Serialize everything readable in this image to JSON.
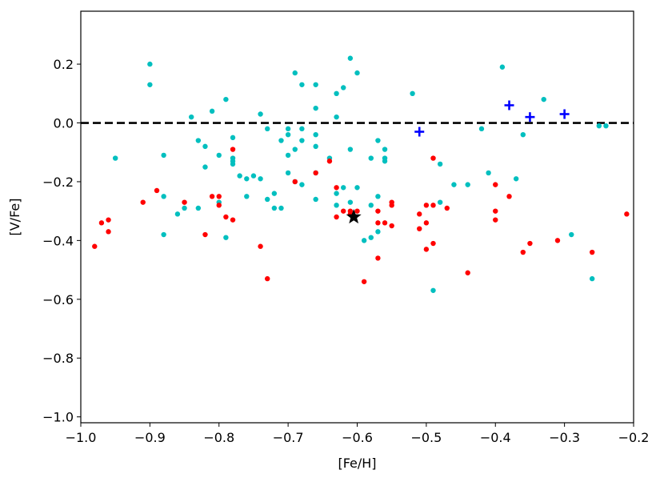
{
  "chart_data": {
    "type": "scatter",
    "title": "",
    "xlabel": "[Fe/H]",
    "ylabel": "[V/Fe]",
    "xlim": [
      -1.0,
      -0.2
    ],
    "ylim": [
      -1.02,
      0.38
    ],
    "xticks": [
      -1.0,
      -0.9,
      -0.8,
      -0.7,
      -0.6,
      -0.5,
      -0.4,
      -0.3,
      -0.2
    ],
    "xtick_labels": [
      "−1.0",
      "−0.9",
      "−0.8",
      "−0.7",
      "−0.6",
      "−0.5",
      "−0.4",
      "−0.3",
      "−0.2"
    ],
    "yticks": [
      -1.0,
      -0.8,
      -0.6,
      -0.4,
      -0.2,
      0.0,
      0.2
    ],
    "ytick_labels": [
      "−1.0",
      "−0.8",
      "−0.6",
      "−0.4",
      "−0.2",
      "0.0",
      "0.2"
    ],
    "grid": false,
    "legend": false,
    "reference_line": {
      "y": 0.0,
      "style": "dashed",
      "color": "#000000"
    },
    "series": [
      {
        "marker": "circle",
        "color": "#00bfbf",
        "points": [
          [
            -0.9,
            0.2
          ],
          [
            -0.9,
            0.13
          ],
          [
            -0.95,
            -0.12
          ],
          [
            -0.88,
            -0.11
          ],
          [
            -0.88,
            -0.25
          ],
          [
            -0.88,
            -0.38
          ],
          [
            -0.86,
            -0.31
          ],
          [
            -0.85,
            -0.29
          ],
          [
            -0.84,
            0.02
          ],
          [
            -0.83,
            -0.06
          ],
          [
            -0.83,
            -0.29
          ],
          [
            -0.82,
            -0.08
          ],
          [
            -0.82,
            -0.15
          ],
          [
            -0.81,
            0.04
          ],
          [
            -0.8,
            -0.11
          ],
          [
            -0.8,
            -0.27
          ],
          [
            -0.79,
            0.08
          ],
          [
            -0.79,
            -0.39
          ],
          [
            -0.78,
            -0.05
          ],
          [
            -0.78,
            -0.12
          ],
          [
            -0.78,
            -0.13
          ],
          [
            -0.78,
            -0.14
          ],
          [
            -0.77,
            -0.18
          ],
          [
            -0.76,
            -0.19
          ],
          [
            -0.76,
            -0.25
          ],
          [
            -0.75,
            -0.18
          ],
          [
            -0.74,
            0.03
          ],
          [
            -0.74,
            -0.19
          ],
          [
            -0.73,
            -0.02
          ],
          [
            -0.73,
            -0.26
          ],
          [
            -0.72,
            -0.24
          ],
          [
            -0.72,
            -0.29
          ],
          [
            -0.71,
            -0.29
          ],
          [
            -0.71,
            -0.06
          ],
          [
            -0.7,
            -0.02
          ],
          [
            -0.7,
            -0.04
          ],
          [
            -0.7,
            -0.11
          ],
          [
            -0.7,
            -0.17
          ],
          [
            -0.69,
            0.17
          ],
          [
            -0.69,
            -0.09
          ],
          [
            -0.69,
            -0.2
          ],
          [
            -0.68,
            0.13
          ],
          [
            -0.68,
            -0.02
          ],
          [
            -0.68,
            -0.06
          ],
          [
            -0.68,
            -0.21
          ],
          [
            -0.66,
            0.13
          ],
          [
            -0.66,
            0.05
          ],
          [
            -0.66,
            -0.04
          ],
          [
            -0.66,
            -0.08
          ],
          [
            -0.66,
            -0.17
          ],
          [
            -0.66,
            -0.26
          ],
          [
            -0.64,
            -0.12
          ],
          [
            -0.63,
            0.1
          ],
          [
            -0.63,
            0.02
          ],
          [
            -0.63,
            -0.24
          ],
          [
            -0.63,
            -0.28
          ],
          [
            -0.62,
            0.12
          ],
          [
            -0.62,
            -0.22
          ],
          [
            -0.61,
            0.22
          ],
          [
            -0.61,
            -0.09
          ],
          [
            -0.61,
            -0.27
          ],
          [
            -0.6,
            0.17
          ],
          [
            -0.6,
            -0.22
          ],
          [
            -0.59,
            -0.4
          ],
          [
            -0.58,
            -0.12
          ],
          [
            -0.58,
            -0.39
          ],
          [
            -0.58,
            -0.28
          ],
          [
            -0.57,
            -0.06
          ],
          [
            -0.57,
            -0.25
          ],
          [
            -0.57,
            -0.37
          ],
          [
            -0.56,
            -0.09
          ],
          [
            -0.56,
            -0.12
          ],
          [
            -0.56,
            -0.13
          ],
          [
            -0.52,
            0.1
          ],
          [
            -0.49,
            -0.57
          ],
          [
            -0.48,
            -0.14
          ],
          [
            -0.48,
            -0.27
          ],
          [
            -0.46,
            -0.21
          ],
          [
            -0.44,
            -0.21
          ],
          [
            -0.42,
            -0.02
          ],
          [
            -0.41,
            -0.17
          ],
          [
            -0.39,
            0.19
          ],
          [
            -0.37,
            -0.19
          ],
          [
            -0.36,
            -0.04
          ],
          [
            -0.33,
            0.08
          ],
          [
            -0.29,
            -0.38
          ],
          [
            -0.26,
            -0.53
          ],
          [
            -0.25,
            -0.01
          ],
          [
            -0.24,
            -0.01
          ]
        ]
      },
      {
        "marker": "circle",
        "color": "#ff0000",
        "points": [
          [
            -0.98,
            -0.42
          ],
          [
            -0.97,
            -0.34
          ],
          [
            -0.96,
            -0.33
          ],
          [
            -0.96,
            -0.37
          ],
          [
            -0.91,
            -0.27
          ],
          [
            -0.89,
            -0.23
          ],
          [
            -0.85,
            -0.27
          ],
          [
            -0.82,
            -0.38
          ],
          [
            -0.81,
            -0.25
          ],
          [
            -0.8,
            -0.25
          ],
          [
            -0.8,
            -0.28
          ],
          [
            -0.79,
            -0.32
          ],
          [
            -0.78,
            -0.09
          ],
          [
            -0.78,
            -0.33
          ],
          [
            -0.74,
            -0.42
          ],
          [
            -0.73,
            -0.53
          ],
          [
            -0.69,
            -0.2
          ],
          [
            -0.66,
            -0.17
          ],
          [
            -0.64,
            -0.13
          ],
          [
            -0.63,
            -0.22
          ],
          [
            -0.63,
            -0.32
          ],
          [
            -0.62,
            -0.3
          ],
          [
            -0.61,
            -0.3
          ],
          [
            -0.61,
            -0.31
          ],
          [
            -0.6,
            -0.3
          ],
          [
            -0.59,
            -0.54
          ],
          [
            -0.57,
            -0.3
          ],
          [
            -0.57,
            -0.34
          ],
          [
            -0.57,
            -0.46
          ],
          [
            -0.56,
            -0.34
          ],
          [
            -0.55,
            -0.28
          ],
          [
            -0.55,
            -0.27
          ],
          [
            -0.55,
            -0.35
          ],
          [
            -0.51,
            -0.31
          ],
          [
            -0.51,
            -0.36
          ],
          [
            -0.5,
            -0.28
          ],
          [
            -0.5,
            -0.34
          ],
          [
            -0.5,
            -0.43
          ],
          [
            -0.49,
            -0.12
          ],
          [
            -0.49,
            -0.28
          ],
          [
            -0.49,
            -0.41
          ],
          [
            -0.47,
            -0.29
          ],
          [
            -0.44,
            -0.51
          ],
          [
            -0.4,
            -0.21
          ],
          [
            -0.4,
            -0.3
          ],
          [
            -0.4,
            -0.33
          ],
          [
            -0.38,
            -0.25
          ],
          [
            -0.36,
            -0.44
          ],
          [
            -0.35,
            -0.41
          ],
          [
            -0.31,
            -0.4
          ],
          [
            -0.26,
            -0.44
          ],
          [
            -0.21,
            -0.31
          ]
        ]
      },
      {
        "marker": "plus",
        "color": "#0000ff",
        "points": [
          [
            -0.51,
            -0.03
          ],
          [
            -0.38,
            0.06
          ],
          [
            -0.35,
            0.02
          ],
          [
            -0.3,
            0.03
          ]
        ]
      },
      {
        "marker": "star",
        "color": "#000000",
        "points": [
          [
            -0.605,
            -0.32
          ]
        ]
      }
    ]
  }
}
